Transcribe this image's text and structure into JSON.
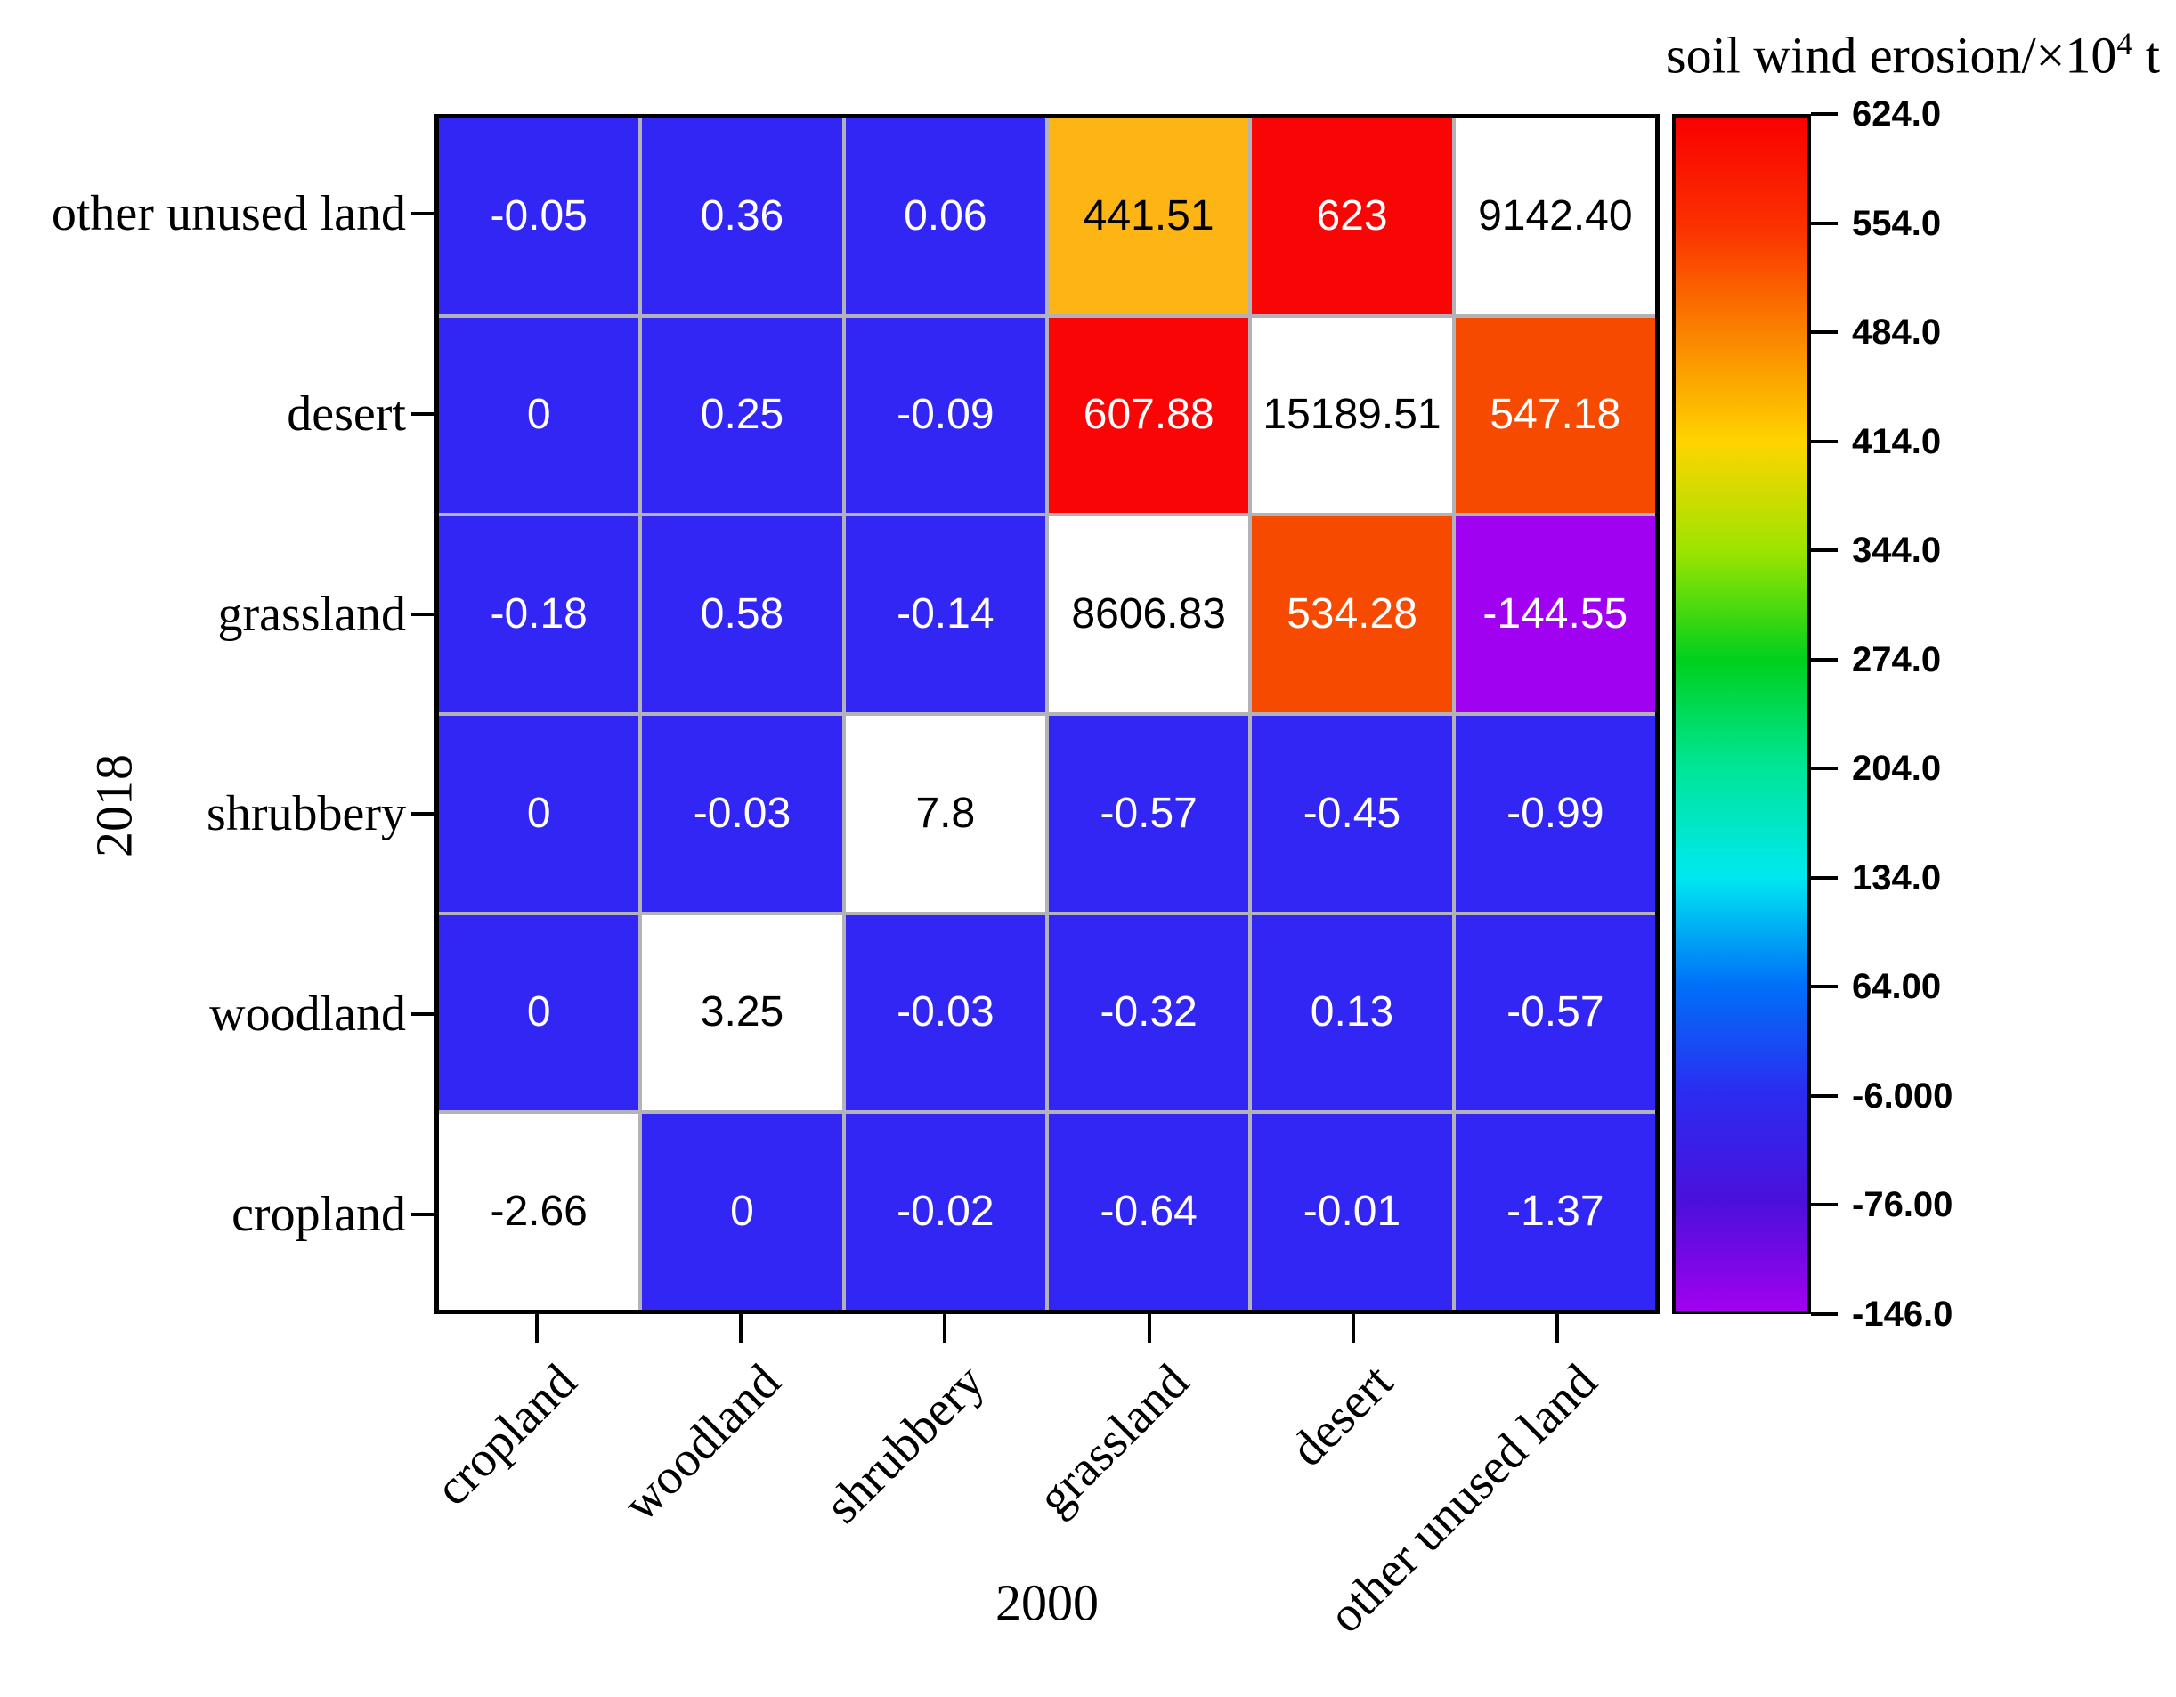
{
  "figure": {
    "background": "#ffffff"
  },
  "chart_data": {
    "type": "heatmap",
    "title": {
      "prefix": "soil wind erosion/×10",
      "superscript": "4",
      "suffix": " t"
    },
    "x_axis": {
      "title": "2000",
      "categories": [
        "cropland",
        "woodland",
        "shrubbery",
        "grassland",
        "desert",
        "other unused land"
      ]
    },
    "y_axis": {
      "title": "2018",
      "categories_top_to_bottom": [
        "other unused land",
        "desert",
        "grassland",
        "shrubbery",
        "woodland",
        "cropland"
      ]
    },
    "grid": {
      "line_color": "#b2b2b8",
      "border_color": "#000000"
    },
    "cells": [
      [
        {
          "value": "-0.05",
          "color": "blue"
        },
        {
          "value": "0.36",
          "color": "blue"
        },
        {
          "value": "0.06",
          "color": "blue"
        },
        {
          "value": "441.51",
          "color": "amber"
        },
        {
          "value": "623",
          "color": "red"
        },
        {
          "value": "9142.40",
          "color": "white"
        }
      ],
      [
        {
          "value": "0",
          "color": "blue"
        },
        {
          "value": "0.25",
          "color": "blue"
        },
        {
          "value": "-0.09",
          "color": "blue"
        },
        {
          "value": "607.88",
          "color": "red"
        },
        {
          "value": "15189.51",
          "color": "white"
        },
        {
          "value": "547.18",
          "color": "orangered"
        }
      ],
      [
        {
          "value": "-0.18",
          "color": "blue"
        },
        {
          "value": "0.58",
          "color": "blue"
        },
        {
          "value": "-0.14",
          "color": "blue"
        },
        {
          "value": "8606.83",
          "color": "white"
        },
        {
          "value": "534.28",
          "color": "orangered"
        },
        {
          "value": "-144.55",
          "color": "purple"
        }
      ],
      [
        {
          "value": "0",
          "color": "blue"
        },
        {
          "value": "-0.03",
          "color": "blue"
        },
        {
          "value": "7.8",
          "color": "white"
        },
        {
          "value": "-0.57",
          "color": "blue"
        },
        {
          "value": "-0.45",
          "color": "blue"
        },
        {
          "value": "-0.99",
          "color": "blue"
        }
      ],
      [
        {
          "value": "0",
          "color": "blue"
        },
        {
          "value": "3.25",
          "color": "white"
        },
        {
          "value": "-0.03",
          "color": "blue"
        },
        {
          "value": "-0.32",
          "color": "blue"
        },
        {
          "value": "0.13",
          "color": "blue"
        },
        {
          "value": "-0.57",
          "color": "blue"
        }
      ],
      [
        {
          "value": "-2.66",
          "color": "white"
        },
        {
          "value": "0",
          "color": "blue"
        },
        {
          "value": "-0.02",
          "color": "blue"
        },
        {
          "value": "-0.64",
          "color": "blue"
        },
        {
          "value": "-0.01",
          "color": "blue"
        },
        {
          "value": "-1.37",
          "color": "blue"
        }
      ]
    ],
    "palette": {
      "blue": {
        "bg": "#3226f5",
        "fg": "#ffffff"
      },
      "amber": {
        "bg": "#fdb515",
        "fg": "#000000"
      },
      "red": {
        "bg": "#fa0505",
        "fg": "#ffffff"
      },
      "orangered": {
        "bg": "#f64a00",
        "fg": "#ffffff"
      },
      "purple": {
        "bg": "#a001f0",
        "fg": "#ffffff"
      },
      "white": {
        "bg": "#ffffff",
        "fg": "#000000"
      }
    },
    "colorbar": {
      "range_min": -146.0,
      "range_max": 624.0,
      "tick_labels": [
        "624.0",
        "554.0",
        "484.0",
        "414.0",
        "344.0",
        "274.0",
        "204.0",
        "134.0",
        "64.00",
        "-6.000",
        "-76.00",
        "-146.0"
      ],
      "gradient_top_to_bottom": [
        "#fa0000",
        "#fb3000",
        "#fa8400",
        "#ffd400",
        "#9ce400",
        "#00d01c",
        "#00e698",
        "#00e8f0",
        "#0070f8",
        "#2b2cf0",
        "#4b10dc",
        "#a001f0"
      ]
    }
  }
}
